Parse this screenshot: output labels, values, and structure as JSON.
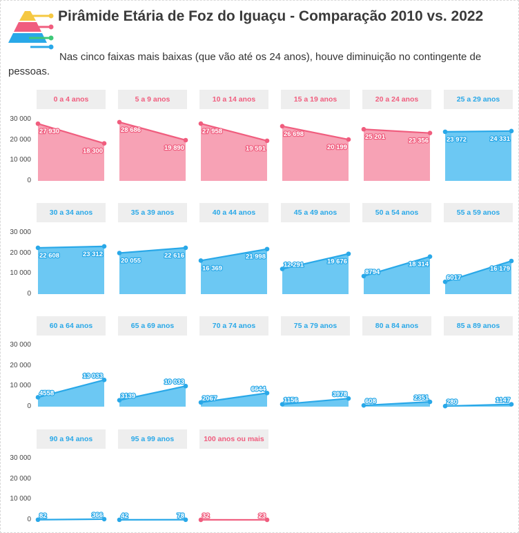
{
  "header": {
    "title": "Pirâmide Etária de Foz do Iguaçu - Comparação 2010 vs. 2022",
    "subtitle": "Nas cinco faixas mais baixas (que vão até os 24 anos), houve diminuição no contingente de pessoas."
  },
  "colors": {
    "decrease": "#f05d7e",
    "decrease_fill": "#f7a2b5",
    "increase": "#29a8e8",
    "increase_fill": "#6cc8f3",
    "header_bg": "#eeeeee"
  },
  "y_ticks": [
    "30 000",
    "20 000",
    "10 000",
    "0"
  ],
  "chart_data": {
    "type": "area",
    "title": "Pirâmide Etária de Foz do Iguaçu - Comparação 2010 vs. 2022",
    "ylim": [
      0,
      30000
    ],
    "yticks": [
      0,
      10000,
      20000,
      30000
    ],
    "x": [
      "2010",
      "2022"
    ],
    "panels": [
      {
        "name": "0 a 4 anos",
        "values": [
          27930,
          18300
        ],
        "labels": [
          "27 930",
          "18 300"
        ],
        "color": "pink"
      },
      {
        "name": "5 a 9 anos",
        "values": [
          28686,
          19890
        ],
        "labels": [
          "28 686",
          "19 890"
        ],
        "color": "pink"
      },
      {
        "name": "10 a 14 anos",
        "values": [
          27958,
          19591
        ],
        "labels": [
          "27 958",
          "19 591"
        ],
        "color": "pink"
      },
      {
        "name": "15 a 19 anos",
        "values": [
          26698,
          20199
        ],
        "labels": [
          "26 698",
          "20 199"
        ],
        "color": "pink"
      },
      {
        "name": "20 a 24 anos",
        "values": [
          25201,
          23356
        ],
        "labels": [
          "25 201",
          "23 356"
        ],
        "color": "pink"
      },
      {
        "name": "25 a 29 anos",
        "values": [
          23972,
          24331
        ],
        "labels": [
          "23 972",
          "24 331"
        ],
        "color": "blue"
      },
      {
        "name": "30 a 34 anos",
        "values": [
          22608,
          23312
        ],
        "labels": [
          "22 608",
          "23 312"
        ],
        "color": "blue"
      },
      {
        "name": "35 a 39 anos",
        "values": [
          20055,
          22616
        ],
        "labels": [
          "20 055",
          "22 616"
        ],
        "color": "blue"
      },
      {
        "name": "40 a 44 anos",
        "values": [
          16369,
          21998
        ],
        "labels": [
          "16 369",
          "21 998"
        ],
        "color": "blue"
      },
      {
        "name": "45 a 49 anos",
        "values": [
          12291,
          19676
        ],
        "labels": [
          "12 291",
          "19 676"
        ],
        "color": "blue"
      },
      {
        "name": "50 a 54 anos",
        "values": [
          8794,
          18314
        ],
        "labels": [
          "8794",
          "18 314"
        ],
        "color": "blue"
      },
      {
        "name": "55 a 59 anos",
        "values": [
          6017,
          16179
        ],
        "labels": [
          "6017",
          "16 179"
        ],
        "color": "blue"
      },
      {
        "name": "60 a 64 anos",
        "values": [
          4558,
          13033
        ],
        "labels": [
          "4558",
          "13 033"
        ],
        "color": "blue"
      },
      {
        "name": "65 a 69 anos",
        "values": [
          3139,
          10033
        ],
        "labels": [
          "3139",
          "10 033"
        ],
        "color": "blue"
      },
      {
        "name": "70 a 74 anos",
        "values": [
          2067,
          6644
        ],
        "labels": [
          "2067",
          "6644"
        ],
        "color": "blue"
      },
      {
        "name": "75 a 79 anos",
        "values": [
          1156,
          3978
        ],
        "labels": [
          "1156",
          "3978"
        ],
        "color": "blue"
      },
      {
        "name": "80 a 84 anos",
        "values": [
          608,
          2351
        ],
        "labels": [
          "608",
          "2351"
        ],
        "color": "blue"
      },
      {
        "name": "85 a 89 anos",
        "values": [
          280,
          1147
        ],
        "labels": [
          "280",
          "1147"
        ],
        "color": "blue"
      },
      {
        "name": "90 a 94 anos",
        "values": [
          82,
          366
        ],
        "labels": [
          "82",
          "366"
        ],
        "color": "blue"
      },
      {
        "name": "95 a 99 anos",
        "values": [
          42,
          78
        ],
        "labels": [
          "42",
          "78"
        ],
        "color": "blue"
      },
      {
        "name": "100 anos ou mais",
        "values": [
          32,
          23
        ],
        "labels": [
          "32",
          "23"
        ],
        "color": "pink"
      }
    ]
  }
}
